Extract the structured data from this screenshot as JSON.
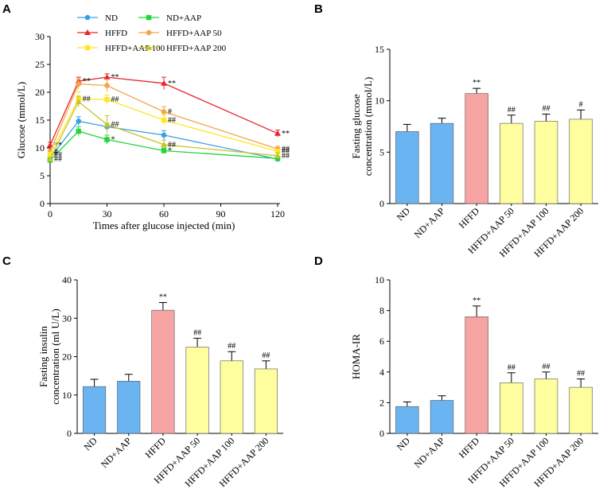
{
  "chart_data": [
    {
      "panel": "A",
      "type": "line",
      "xlabel": "Times after glucose injected (min)",
      "ylabel": "Glucose (mmol/L)",
      "xlim": [
        0,
        120
      ],
      "ylim": [
        0,
        30
      ],
      "xticks": [
        0,
        30,
        60,
        90,
        120
      ],
      "yticks": [
        0,
        5,
        10,
        15,
        20,
        25,
        30
      ],
      "x": [
        0,
        15,
        30,
        60,
        120
      ],
      "legend_placement": "top",
      "series": [
        {
          "name": "ND",
          "color": "#3aa0e6",
          "marker": "circle",
          "values": [
            8.2,
            14.8,
            13.8,
            12.3,
            8.0
          ],
          "errors": [
            0.3,
            0.8,
            0.6,
            0.8,
            0.4
          ],
          "sig": [
            "",
            "",
            "",
            "",
            ""
          ]
        },
        {
          "name": "ND+AAP",
          "color": "#22d63a",
          "marker": "square",
          "values": [
            7.8,
            13.0,
            11.5,
            9.5,
            8.1
          ],
          "errors": [
            0.3,
            0.8,
            0.8,
            0.5,
            0.3
          ],
          "sig": [
            "",
            "",
            "*",
            "*",
            ""
          ]
        },
        {
          "name": "HFFD",
          "color": "#e8242d",
          "marker": "triangle",
          "values": [
            10.5,
            22.0,
            22.7,
            21.6,
            12.6
          ],
          "errors": [
            0.5,
            0.7,
            0.6,
            1.1,
            0.6
          ],
          "sig": [
            "**",
            "**",
            "**",
            "**",
            "**"
          ]
        },
        {
          "name": "HFFD+AAP 50",
          "color": "#f5a44a",
          "marker": "circle",
          "values": [
            9.3,
            21.5,
            21.2,
            16.5,
            9.8
          ],
          "errors": [
            0.4,
            0.9,
            1.1,
            0.9,
            0.5
          ],
          "sig": [
            "#",
            "",
            "",
            "#",
            "##"
          ]
        },
        {
          "name": "HFFD+AAP 100",
          "color": "#ffe626",
          "marker": "square",
          "values": [
            8.8,
            18.8,
            18.7,
            15.0,
            9.4
          ],
          "errors": [
            0.4,
            1.3,
            0.8,
            0.9,
            0.4
          ],
          "sig": [
            "##",
            "##",
            "##",
            "##",
            "##"
          ]
        },
        {
          "name": "HFFD+AAP 200",
          "color": "#c8c428",
          "marker": "triangle",
          "values": [
            8.0,
            18.3,
            14.2,
            10.6,
            8.6
          ],
          "errors": [
            0.3,
            1.0,
            1.6,
            0.8,
            0.5
          ],
          "sig": [
            "##",
            "",
            "##",
            "##",
            "##"
          ]
        }
      ]
    },
    {
      "panel": "B",
      "type": "bar",
      "ylabel": [
        "Fasting glucose",
        "concentration (mmol/L)"
      ],
      "ylim": [
        0,
        15
      ],
      "yticks": [
        0,
        5,
        10,
        15
      ],
      "categories": [
        "ND",
        "ND+AAP",
        "HFFD",
        "HFFD+AAP 50",
        "HFFD+AAP 100",
        "HFFD+AAP 200"
      ],
      "values": [
        7.0,
        7.8,
        10.7,
        7.8,
        8.0,
        8.2
      ],
      "errors": [
        0.7,
        0.5,
        0.5,
        0.8,
        0.7,
        0.9
      ],
      "sig": [
        "",
        "",
        "**",
        "##",
        "##",
        "#"
      ],
      "bar_colors": [
        "#6ab4f2",
        "#6ab4f2",
        "#f5a3a3",
        "#fefe9e",
        "#fefe9e",
        "#fefe9e"
      ]
    },
    {
      "panel": "C",
      "type": "bar",
      "ylabel": [
        "Fasting insulin",
        "concentration (ml U/L)"
      ],
      "ylim": [
        0,
        40
      ],
      "yticks": [
        0,
        10,
        20,
        30,
        40
      ],
      "categories": [
        "ND",
        "ND+AAP",
        "HFFD",
        "HFFD+AAP 50",
        "HFFD+AAP 100",
        "HFFD+AAP 200"
      ],
      "values": [
        12.2,
        13.6,
        32.1,
        22.5,
        18.9,
        16.8
      ],
      "errors": [
        1.9,
        1.8,
        2.0,
        2.3,
        2.4,
        2.1
      ],
      "sig": [
        "",
        "",
        "**",
        "##",
        "##",
        "##"
      ],
      "bar_colors": [
        "#6ab4f2",
        "#6ab4f2",
        "#f5a3a3",
        "#fefe9e",
        "#fefe9e",
        "#fefe9e"
      ]
    },
    {
      "panel": "D",
      "type": "bar",
      "ylabel": [
        "HOMA-IR"
      ],
      "ylim": [
        0,
        10
      ],
      "yticks": [
        0,
        2,
        4,
        6,
        8,
        10
      ],
      "categories": [
        "ND",
        "ND+AAP",
        "HFFD",
        "HFFD+AAP 50",
        "HFFD+AAP 100",
        "HFFD+AAP 200"
      ],
      "values": [
        1.75,
        2.15,
        7.6,
        3.3,
        3.55,
        3.0
      ],
      "errors": [
        0.3,
        0.3,
        0.7,
        0.65,
        0.45,
        0.55
      ],
      "sig": [
        "",
        "",
        "**",
        "##",
        "##",
        "##"
      ],
      "bar_colors": [
        "#6ab4f2",
        "#6ab4f2",
        "#f5a3a3",
        "#fefe9e",
        "#fefe9e",
        "#fefe9e"
      ]
    }
  ]
}
